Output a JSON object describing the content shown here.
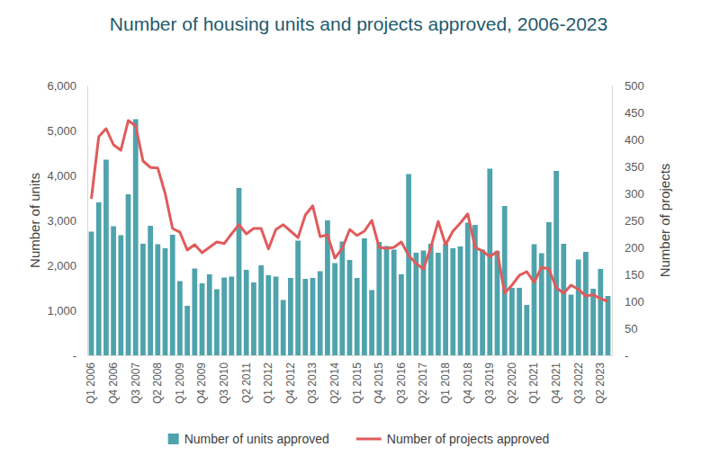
{
  "chart_data": {
    "type": "bar",
    "title": "Number of housing units and projects approved, 2006-2023",
    "y_label": "Number of units",
    "y2_label": "Number of projects",
    "categories": [
      "Q1 2006",
      null,
      null,
      "Q4 2006",
      null,
      null,
      "Q3 2007",
      null,
      null,
      "Q2 2008",
      null,
      null,
      "Q1 2009",
      null,
      null,
      "Q4 2009",
      null,
      null,
      "Q3 2010",
      null,
      null,
      "Q2 2011",
      null,
      null,
      "Q1 2012",
      null,
      null,
      "Q4 2012",
      null,
      null,
      "Q3 2013",
      null,
      null,
      "Q2 2014",
      null,
      null,
      "Q1 2015",
      null,
      null,
      "Q4 2015",
      null,
      null,
      "Q3 2016",
      null,
      null,
      "Q2 2017",
      null,
      null,
      "Q1 2018",
      null,
      null,
      "Q4 2018",
      null,
      null,
      "Q3 2019",
      null,
      null,
      "Q2 2020",
      null,
      null,
      "Q1 2021",
      null,
      null,
      "Q4 2021",
      null,
      null,
      "Q3 2022",
      null,
      null,
      "Q2 2023",
      null
    ],
    "series": [
      {
        "name": "Number of units approved",
        "type": "bar",
        "color": "#4fa3ac",
        "values": [
          2750,
          3400,
          4350,
          2870,
          2670,
          3580,
          5250,
          2480,
          2880,
          2470,
          2380,
          2680,
          1650,
          1100,
          1930,
          1600,
          1800,
          1470,
          1730,
          1750,
          3720,
          1900,
          1620,
          2000,
          1780,
          1750,
          1230,
          1720,
          2550,
          1700,
          1720,
          1870,
          3000,
          2050,
          2530,
          2120,
          1720,
          2600,
          1450,
          2520,
          2430,
          2350,
          1800,
          4030,
          2280,
          2330,
          2480,
          2280,
          2480,
          2380,
          2420,
          2950,
          2900,
          2350,
          4150,
          2320,
          3320,
          1500,
          1500,
          1120,
          2470,
          2270,
          2960,
          4100,
          2480,
          1350,
          2130,
          2300,
          1480,
          1920,
          1320
        ]
      },
      {
        "name": "Number of projects approved",
        "type": "line",
        "axis": "y2",
        "color": "#e05b5b",
        "values": [
          290,
          405,
          420,
          390,
          380,
          435,
          425,
          360,
          348,
          347,
          300,
          235,
          228,
          195,
          205,
          190,
          200,
          210,
          207,
          225,
          242,
          225,
          235,
          235,
          197,
          233,
          242,
          230,
          218,
          260,
          277,
          220,
          223,
          180,
          198,
          233,
          222,
          230,
          250,
          200,
          198,
          200,
          210,
          185,
          170,
          160,
          200,
          248,
          205,
          230,
          245,
          262,
          200,
          193,
          183,
          192,
          115,
          130,
          148,
          155,
          135,
          163,
          160,
          125,
          115,
          130,
          122,
          110,
          112,
          105,
          100
        ]
      }
    ],
    "ylim": [
      0,
      6000
    ],
    "yticks": [
      {
        "value": 0,
        "label": "-"
      },
      {
        "value": 1000,
        "label": "1,000"
      },
      {
        "value": 2000,
        "label": "2,000"
      },
      {
        "value": 3000,
        "label": "3,000"
      },
      {
        "value": 4000,
        "label": "4,000"
      },
      {
        "value": 5000,
        "label": "5,000"
      },
      {
        "value": 6000,
        "label": "6,000"
      }
    ],
    "y2lim": [
      0,
      500
    ],
    "y2ticks": [
      {
        "value": 0,
        "label": "-"
      },
      50,
      100,
      150,
      200,
      250,
      300,
      350,
      400,
      450,
      500
    ],
    "grid": false,
    "legend": "bottom"
  }
}
